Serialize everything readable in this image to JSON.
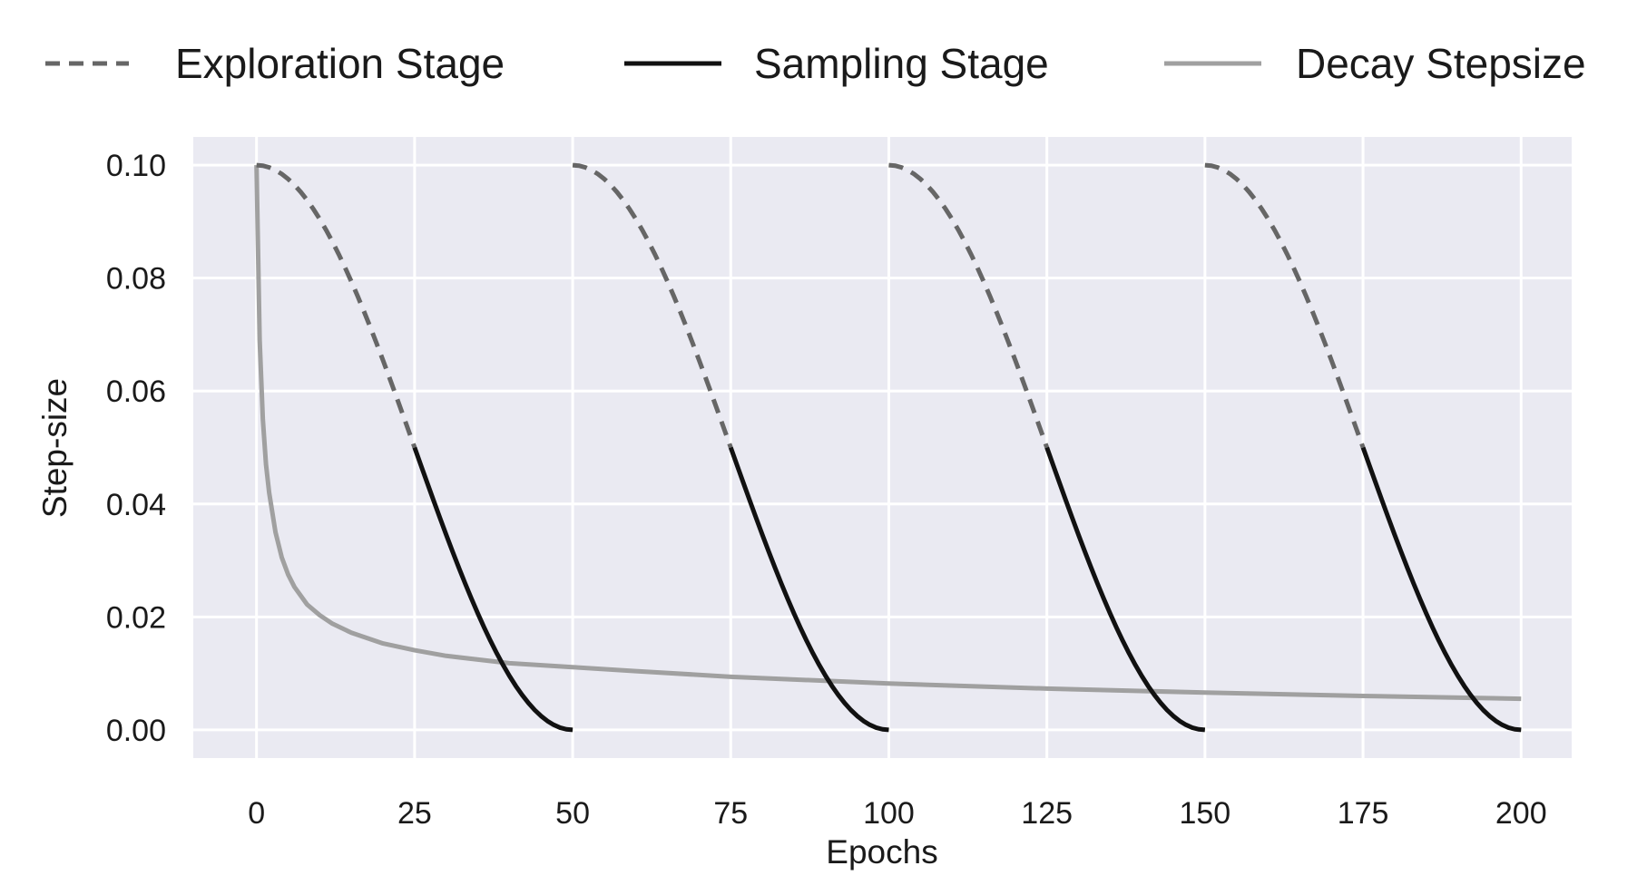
{
  "chart_data": {
    "type": "line",
    "xlabel": "Epochs",
    "ylabel": "Step-size",
    "xlim": [
      -10,
      208
    ],
    "ylim": [
      -0.005,
      0.105
    ],
    "xticks": [
      0,
      25,
      50,
      75,
      100,
      125,
      150,
      175,
      200
    ],
    "xtick_labels": [
      "0",
      "25",
      "50",
      "75",
      "100",
      "125",
      "150",
      "175",
      "200"
    ],
    "yticks": [
      0.0,
      0.02,
      0.04,
      0.06,
      0.08,
      0.1
    ],
    "ytick_labels": [
      "0.00",
      "0.02",
      "0.04",
      "0.06",
      "0.08",
      "0.10"
    ],
    "grid": true,
    "background": "#eaeaf2",
    "legend_position": "top",
    "legend": {
      "exploration": "Exploration Stage",
      "sampling": "Sampling Stage",
      "decay": "Decay Stepsize"
    },
    "colors": {
      "exploration": "#666666",
      "sampling": "#111111",
      "decay": "#a0a0a0"
    },
    "series": [
      {
        "name": "Exploration Stage",
        "style": "dashed",
        "segments": [
          {
            "x": [
              0,
              5,
              10,
              15,
              20,
              25
            ],
            "y": [
              0.1,
              0.0976,
              0.0905,
              0.0794,
              0.0655,
              0.05
            ]
          },
          {
            "x": [
              50,
              55,
              60,
              65,
              70,
              75
            ],
            "y": [
              0.1,
              0.0976,
              0.0905,
              0.0794,
              0.0655,
              0.05
            ]
          },
          {
            "x": [
              100,
              105,
              110,
              115,
              120,
              125
            ],
            "y": [
              0.1,
              0.0976,
              0.0905,
              0.0794,
              0.0655,
              0.05
            ]
          },
          {
            "x": [
              150,
              155,
              160,
              165,
              170,
              175
            ],
            "y": [
              0.1,
              0.0976,
              0.0905,
              0.0794,
              0.0655,
              0.05
            ]
          }
        ]
      },
      {
        "name": "Sampling Stage",
        "style": "solid",
        "segments": [
          {
            "x": [
              25,
              30,
              35,
              40,
              45,
              50
            ],
            "y": [
              0.05,
              0.0345,
              0.0206,
              0.0095,
              0.0024,
              0.0
            ]
          },
          {
            "x": [
              75,
              80,
              85,
              90,
              95,
              100
            ],
            "y": [
              0.05,
              0.0345,
              0.0206,
              0.0095,
              0.0024,
              0.0
            ]
          },
          {
            "x": [
              125,
              130,
              135,
              140,
              145,
              150
            ],
            "y": [
              0.05,
              0.0345,
              0.0206,
              0.0095,
              0.0024,
              0.0
            ]
          },
          {
            "x": [
              175,
              180,
              185,
              190,
              195,
              200
            ],
            "y": [
              0.05,
              0.0345,
              0.0206,
              0.0095,
              0.0024,
              0.0
            ]
          }
        ]
      },
      {
        "name": "Decay Stepsize",
        "style": "solid",
        "segments": [
          {
            "x": [
              0,
              0.5,
              1,
              1.5,
              2,
              3,
              4,
              5,
              6,
              8,
              10,
              12,
              15,
              20,
              25,
              30,
              40,
              50,
              60,
              75,
              100,
              125,
              150,
              175,
              200
            ],
            "y": [
              0.1,
              0.069,
              0.055,
              0.047,
              0.042,
              0.035,
              0.0305,
              0.0275,
              0.0253,
              0.0222,
              0.0203,
              0.0188,
              0.0172,
              0.0153,
              0.0141,
              0.0131,
              0.0118,
              0.0111,
              0.0104,
              0.0094,
              0.0082,
              0.0073,
              0.0066,
              0.006,
              0.0055
            ]
          }
        ]
      }
    ]
  }
}
